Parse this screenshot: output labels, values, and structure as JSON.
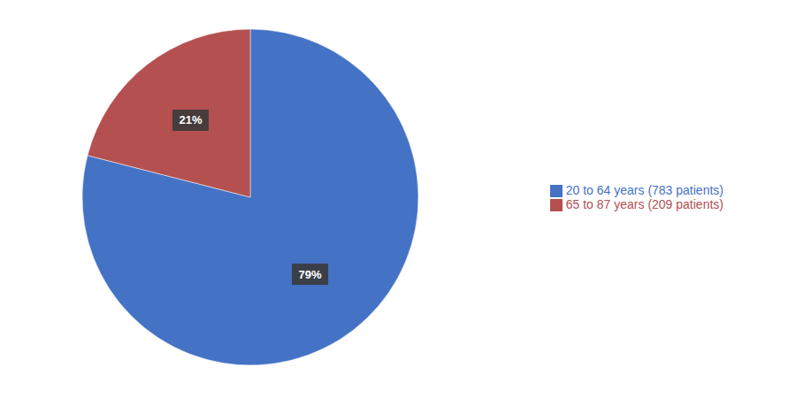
{
  "chart_data": {
    "type": "pie",
    "categories": [
      "20 to 64 years (783 patients)",
      "65 to 87 years (209 patients)"
    ],
    "values": [
      79,
      21
    ],
    "value_labels": [
      "79%",
      "21%"
    ],
    "colors": [
      "#4472C4",
      "#B55050"
    ],
    "data_labels": true,
    "legend": "right"
  }
}
